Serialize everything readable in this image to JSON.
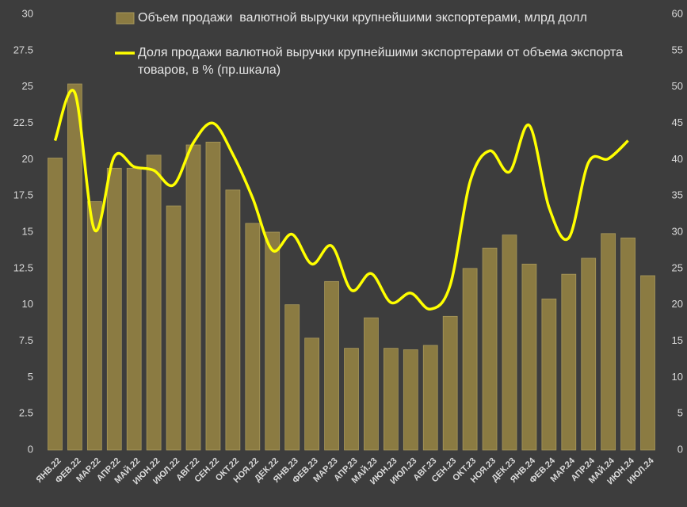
{
  "chart_data": {
    "type": "bar_line",
    "categories": [
      "ЯНВ.22",
      "ФЕВ.22",
      "МАР.22",
      "АПР.22",
      "МАЙ.22",
      "ИЮН.22",
      "ИЮЛ.22",
      "АВГ.22",
      "СЕН.22",
      "ОКТ.22",
      "НОЯ.22",
      "ДЕК.22",
      "ЯНВ.23",
      "ФЕВ.23",
      "МАР.23",
      "АПР.23",
      "МАЙ.23",
      "ИЮН.23",
      "ИЮЛ.23",
      "АВГ.23",
      "СЕН.23",
      "ОКТ.23",
      "НОЯ.23",
      "ДЕК.23",
      "ЯНВ.24",
      "ФЕВ.24",
      "МАР.24",
      "АПР.24",
      "МАЙ.24",
      "ИЮН.24",
      "ИЮЛ.24"
    ],
    "series": [
      {
        "name": "Объем продажи  валютной выручки крупнейшими экспортерами, млрд долл",
        "type": "bar",
        "color": "#8b7b42",
        "values": [
          20.1,
          25.2,
          17.1,
          19.4,
          19.4,
          20.3,
          16.8,
          21.0,
          21.2,
          17.9,
          15.6,
          15.0,
          10.0,
          7.7,
          11.6,
          7.0,
          9.1,
          7.0,
          6.9,
          7.2,
          9.2,
          12.5,
          13.9,
          14.8,
          12.8,
          10.4,
          12.1,
          13.2,
          14.9,
          14.6,
          12.0
        ]
      },
      {
        "name": "Доля продажи валютной выручки крупнейшими экспортерами от объема экспорта товаров, в % (пр.шкала)",
        "type": "line",
        "axis": "y2",
        "color": "#ffff00",
        "values": [
          42.6,
          49.2,
          30.3,
          40.4,
          39.0,
          38.5,
          36.5,
          42.3,
          45.0,
          40.7,
          34.7,
          27.5,
          29.7,
          25.6,
          28.1,
          22.0,
          24.3,
          20.3,
          21.6,
          19.4,
          22.7,
          36.9,
          41.2,
          38.3,
          44.7,
          33.4,
          29.2,
          39.6,
          40.1,
          42.6,
          null
        ]
      }
    ],
    "ylim": [
      0,
      30
    ],
    "yticks": [
      0,
      2.5,
      5,
      7.5,
      10,
      12.5,
      15,
      17.5,
      20,
      22.5,
      25,
      27.5,
      30
    ],
    "y2lim": [
      0,
      60
    ],
    "y2ticks": [
      0,
      5,
      10,
      15,
      20,
      25,
      30,
      35,
      40,
      45,
      50,
      55,
      60
    ],
    "grid": false
  }
}
